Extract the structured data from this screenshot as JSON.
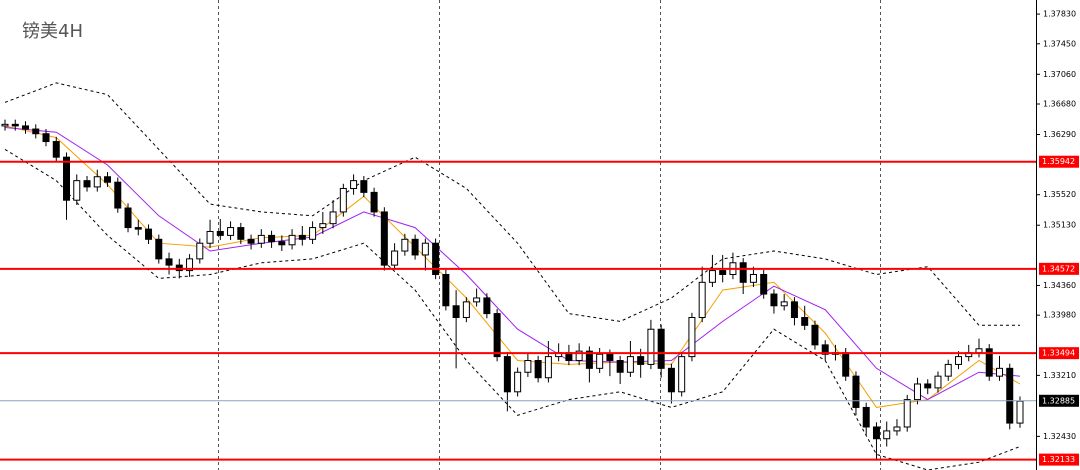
{
  "chart_data": {
    "type": "candlestick",
    "title": "镑美4H",
    "ylim": [
      1.32,
      1.3801
    ],
    "yticks": [
      {
        "value": 1.3783,
        "label": "1.37830"
      },
      {
        "value": 1.3745,
        "label": "1.37450"
      },
      {
        "value": 1.3706,
        "label": "1.37060"
      },
      {
        "value": 1.3668,
        "label": "1.36680"
      },
      {
        "value": 1.3629,
        "label": "1.36290"
      },
      {
        "value": 1.3552,
        "label": "1.35520"
      },
      {
        "value": 1.3513,
        "label": "1.35130"
      },
      {
        "value": 1.3436,
        "label": "1.34360"
      },
      {
        "value": 1.3398,
        "label": "1.33980"
      },
      {
        "value": 1.3321,
        "label": "1.33210"
      },
      {
        "value": 1.3243,
        "label": "1.32430"
      }
    ],
    "up_color": "#ffffff",
    "down_color": "#000000",
    "candles": [
      [
        1.364,
        1.3648,
        1.3634,
        1.3642
      ],
      [
        1.3642,
        1.3648,
        1.3634,
        1.364
      ],
      [
        1.364,
        1.3646,
        1.363,
        1.3636
      ],
      [
        1.3636,
        1.3642,
        1.3624,
        1.363
      ],
      [
        1.363,
        1.3636,
        1.3614,
        1.362
      ],
      [
        1.362,
        1.3626,
        1.3594,
        1.36
      ],
      [
        1.36,
        1.3606,
        1.352,
        1.3545
      ],
      [
        1.3545,
        1.3578,
        1.3539,
        1.357
      ],
      [
        1.357,
        1.3576,
        1.3556,
        1.3562
      ],
      [
        1.3562,
        1.3584,
        1.3556,
        1.3575
      ],
      [
        1.3575,
        1.3581,
        1.3562,
        1.3568
      ],
      [
        1.3568,
        1.3574,
        1.3529,
        1.3535
      ],
      [
        1.3535,
        1.3541,
        1.3504,
        1.351
      ],
      [
        1.351,
        1.352,
        1.35,
        1.3508
      ],
      [
        1.3508,
        1.3514,
        1.3489,
        1.3495
      ],
      [
        1.3495,
        1.3501,
        1.3464,
        1.347
      ],
      [
        1.347,
        1.3478,
        1.345,
        1.3462
      ],
      [
        1.3462,
        1.347,
        1.3445,
        1.3455
      ],
      [
        1.3455,
        1.3476,
        1.3447,
        1.347
      ],
      [
        1.347,
        1.3496,
        1.3464,
        1.349
      ],
      [
        1.349,
        1.352,
        1.3484,
        1.3505
      ],
      [
        1.3505,
        1.3521,
        1.3494,
        1.35
      ],
      [
        1.35,
        1.3518,
        1.3494,
        1.351
      ],
      [
        1.351,
        1.3516,
        1.3489,
        1.3495
      ],
      [
        1.3495,
        1.3501,
        1.3482,
        1.349
      ],
      [
        1.349,
        1.3508,
        1.3484,
        1.35
      ],
      [
        1.35,
        1.3506,
        1.3484,
        1.3492
      ],
      [
        1.3492,
        1.35,
        1.348,
        1.3488
      ],
      [
        1.3488,
        1.3508,
        1.3482,
        1.35
      ],
      [
        1.35,
        1.3512,
        1.3487,
        1.3495
      ],
      [
        1.3495,
        1.3518,
        1.3489,
        1.351
      ],
      [
        1.351,
        1.353,
        1.3502,
        1.3515
      ],
      [
        1.3515,
        1.3545,
        1.3509,
        1.353
      ],
      [
        1.353,
        1.3566,
        1.3524,
        1.356
      ],
      [
        1.356,
        1.3578,
        1.3552,
        1.357
      ],
      [
        1.357,
        1.3576,
        1.3549,
        1.3555
      ],
      [
        1.3555,
        1.3561,
        1.3524,
        1.353
      ],
      [
        1.353,
        1.3536,
        1.3455,
        1.3462
      ],
      [
        1.3462,
        1.349,
        1.3456,
        1.348
      ],
      [
        1.348,
        1.3502,
        1.3474,
        1.3495
      ],
      [
        1.3495,
        1.3501,
        1.3469,
        1.3475
      ],
      [
        1.3475,
        1.3496,
        1.3455,
        1.349
      ],
      [
        1.349,
        1.3496,
        1.3444,
        1.345
      ],
      [
        1.345,
        1.3456,
        1.3404,
        1.341
      ],
      [
        1.341,
        1.343,
        1.333,
        1.3395
      ],
      [
        1.3395,
        1.3421,
        1.3389,
        1.3415
      ],
      [
        1.3415,
        1.3432,
        1.3409,
        1.342
      ],
      [
        1.342,
        1.3426,
        1.3394,
        1.34
      ],
      [
        1.34,
        1.3406,
        1.3339,
        1.3345
      ],
      [
        1.3345,
        1.3351,
        1.3275,
        1.33
      ],
      [
        1.33,
        1.3331,
        1.3294,
        1.3325
      ],
      [
        1.3325,
        1.335,
        1.3319,
        1.334
      ],
      [
        1.334,
        1.3346,
        1.3312,
        1.3318
      ],
      [
        1.3318,
        1.3365,
        1.3312,
        1.3345
      ],
      [
        1.3345,
        1.3362,
        1.3339,
        1.335
      ],
      [
        1.335,
        1.336,
        1.3334,
        1.334
      ],
      [
        1.334,
        1.3362,
        1.3334,
        1.3352
      ],
      [
        1.3352,
        1.3358,
        1.3312,
        1.333
      ],
      [
        1.333,
        1.3356,
        1.3324,
        1.3348
      ],
      [
        1.3348,
        1.3354,
        1.332,
        1.334
      ],
      [
        1.334,
        1.3346,
        1.331,
        1.3325
      ],
      [
        1.3325,
        1.3365,
        1.3319,
        1.3345
      ],
      [
        1.3345,
        1.3355,
        1.3318,
        1.3335
      ],
      [
        1.3335,
        1.3392,
        1.3329,
        1.338
      ],
      [
        1.338,
        1.3386,
        1.3318,
        1.333
      ],
      [
        1.333,
        1.3336,
        1.3285,
        1.33
      ],
      [
        1.33,
        1.3351,
        1.3294,
        1.3345
      ],
      [
        1.3345,
        1.3401,
        1.3339,
        1.3395
      ],
      [
        1.3395,
        1.346,
        1.3389,
        1.344
      ],
      [
        1.344,
        1.3475,
        1.3434,
        1.3455
      ],
      [
        1.3455,
        1.3475,
        1.344,
        1.345
      ],
      [
        1.345,
        1.3478,
        1.3444,
        1.3465
      ],
      [
        1.3465,
        1.3471,
        1.3425,
        1.344
      ],
      [
        1.344,
        1.346,
        1.3434,
        1.345
      ],
      [
        1.345,
        1.3456,
        1.3419,
        1.3425
      ],
      [
        1.3425,
        1.3431,
        1.34,
        1.341
      ],
      [
        1.341,
        1.3425,
        1.3404,
        1.3415
      ],
      [
        1.3415,
        1.3421,
        1.3385,
        1.3395
      ],
      [
        1.3395,
        1.341,
        1.3379,
        1.3385
      ],
      [
        1.3385,
        1.3391,
        1.3354,
        1.336
      ],
      [
        1.336,
        1.3366,
        1.334,
        1.3348
      ],
      [
        1.3348,
        1.336,
        1.334,
        1.335
      ],
      [
        1.335,
        1.3356,
        1.3314,
        1.332
      ],
      [
        1.332,
        1.3326,
        1.327,
        1.328
      ],
      [
        1.328,
        1.3286,
        1.3245,
        1.3255
      ],
      [
        1.3255,
        1.3261,
        1.3212,
        1.324
      ],
      [
        1.324,
        1.3262,
        1.323,
        1.325
      ],
      [
        1.325,
        1.3265,
        1.3244,
        1.3255
      ],
      [
        1.3255,
        1.3296,
        1.3249,
        1.329
      ],
      [
        1.329,
        1.3318,
        1.3284,
        1.331
      ],
      [
        1.331,
        1.3316,
        1.3297,
        1.3305
      ],
      [
        1.3305,
        1.3326,
        1.3299,
        1.332
      ],
      [
        1.332,
        1.3341,
        1.3314,
        1.3335
      ],
      [
        1.3335,
        1.3352,
        1.3329,
        1.3345
      ],
      [
        1.3345,
        1.336,
        1.3339,
        1.335
      ],
      [
        1.335,
        1.3368,
        1.3344,
        1.3355
      ],
      [
        1.3355,
        1.3361,
        1.3314,
        1.332
      ],
      [
        1.332,
        1.3346,
        1.3314,
        1.333
      ],
      [
        1.333,
        1.3336,
        1.3252,
        1.326
      ],
      [
        1.326,
        1.3294,
        1.3254,
        1.3288
      ]
    ],
    "indicator_index": [
      0,
      5,
      10,
      15,
      20,
      25,
      30,
      35,
      40,
      45,
      50,
      55,
      60,
      65,
      70,
      75,
      80,
      85,
      90,
      95,
      99
    ],
    "indicators": [
      {
        "color": "#f5a000",
        "style": "solid",
        "values": [
          1.364,
          1.3625,
          1.3565,
          1.349,
          1.3485,
          1.3497,
          1.35,
          1.355,
          1.3485,
          1.342,
          1.334,
          1.3335,
          1.3338,
          1.3335,
          1.343,
          1.344,
          1.3375,
          1.328,
          1.329,
          1.334,
          1.331
        ]
      },
      {
        "color": "#a020f0",
        "style": "solid",
        "values": [
          1.3638,
          1.3632,
          1.359,
          1.3525,
          1.348,
          1.349,
          1.3498,
          1.353,
          1.351,
          1.345,
          1.338,
          1.334,
          1.3338,
          1.334,
          1.339,
          1.3435,
          1.3405,
          1.333,
          1.329,
          1.3325,
          1.332
        ]
      },
      {
        "color": "#000000",
        "style": "dashed",
        "values": [
          1.367,
          1.3695,
          1.368,
          1.361,
          1.354,
          1.353,
          1.3525,
          1.357,
          1.36,
          1.356,
          1.349,
          1.34,
          1.339,
          1.342,
          1.347,
          1.348,
          1.347,
          1.345,
          1.346,
          1.3385,
          1.3385
        ]
      },
      {
        "color": "#000000",
        "style": "dashed",
        "values": [
          1.361,
          1.357,
          1.35,
          1.3445,
          1.345,
          1.3465,
          1.347,
          1.349,
          1.343,
          1.334,
          1.327,
          1.329,
          1.33,
          1.328,
          1.33,
          1.338,
          1.334,
          1.322,
          1.32,
          1.321,
          1.323
        ]
      }
    ],
    "levels": [
      {
        "value": 1.35942,
        "color": "#ff0000"
      },
      {
        "value": 1.34572,
        "color": "#ff0000"
      },
      {
        "value": 1.33494,
        "color": "#ff0000"
      },
      {
        "value": 1.32133,
        "color": "#ff0000"
      }
    ],
    "current_price": {
      "value": 1.32885,
      "color": "#8aa2bd"
    }
  }
}
